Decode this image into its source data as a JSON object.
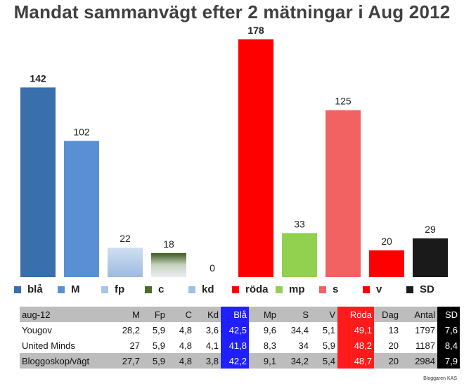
{
  "chart_data": {
    "type": "bar",
    "title": "Mandat sammanvägt efter 2 mätningar i Aug 2012",
    "categories": [
      "blå",
      "M",
      "fp",
      "c",
      "kd",
      "röda",
      "mp",
      "s",
      "v",
      "SD"
    ],
    "values": [
      142,
      102,
      22,
      18,
      0,
      178,
      33,
      125,
      20,
      29
    ],
    "colors": [
      "#3a6fad",
      "#5b8fd4",
      "#aac4e4",
      "#4d6b2a",
      "#9cc0e6",
      "#ff0000",
      "#92d050",
      "#f26262",
      "#ff0000",
      "#1a1a1a"
    ],
    "ylim": [
      0,
      178
    ],
    "grid": false,
    "legend": "bottom"
  },
  "table": {
    "columns": [
      "aug-12",
      "M",
      "Fp",
      "C",
      "Kd",
      "Blå",
      "Mp",
      "S",
      "V",
      "Röda",
      "Dag",
      "Antal",
      "SD"
    ],
    "rows": [
      [
        "Yougov",
        "28,2",
        "5,9",
        "4,8",
        "3,6",
        "42,5",
        "9,6",
        "34,4",
        "5,1",
        "49,1",
        "13",
        "1797",
        "7,6"
      ],
      [
        "United Minds",
        "27",
        "5,9",
        "4,8",
        "4,1",
        "41,8",
        "8,3",
        "34",
        "5,9",
        "48,2",
        "20",
        "1187",
        "8,4"
      ],
      [
        "Bloggoskop/vägt",
        "27,7",
        "5,9",
        "4,8",
        "3,8",
        "42,2",
        "9,1",
        "34,2",
        "5,4",
        "48,7",
        "20",
        "2984",
        "7,9"
      ]
    ]
  },
  "credit": "Bloggaren KAS"
}
